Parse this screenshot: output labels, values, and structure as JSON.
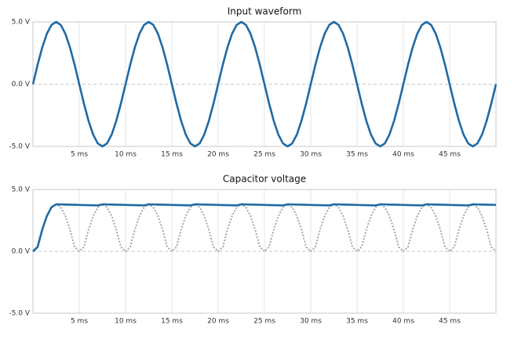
{
  "chart_data": [
    {
      "type": "line",
      "title": "Input waveform",
      "x": [
        0,
        0.5,
        1,
        1.5,
        2,
        2.5,
        3,
        3.5,
        4,
        4.5,
        5,
        5.5,
        6,
        6.5,
        7,
        7.5,
        8,
        8.5,
        9,
        9.5,
        10,
        10.5,
        11,
        11.5,
        12,
        12.5,
        13,
        13.5,
        14,
        14.5,
        15,
        15.5,
        16,
        16.5,
        17,
        17.5,
        18,
        18.5,
        19,
        19.5,
        20,
        20.5,
        21,
        21.5,
        22,
        22.5,
        23,
        23.5,
        24,
        24.5,
        25,
        25.5,
        26,
        26.5,
        27,
        27.5,
        28,
        28.5,
        29,
        29.5,
        30,
        30.5,
        31,
        31.5,
        32,
        32.5,
        33,
        33.5,
        34,
        34.5,
        35,
        35.5,
        36,
        36.5,
        37,
        37.5,
        38,
        38.5,
        39,
        39.5,
        40,
        40.5,
        41,
        41.5,
        42,
        42.5,
        43,
        43.5,
        44,
        44.5,
        45,
        45.5,
        46,
        46.5,
        47,
        47.5,
        48,
        48.5,
        49,
        49.5,
        50
      ],
      "series": [
        {
          "color": "#1f6aa5",
          "dash": "solid",
          "values": [
            0,
            1.55,
            2.94,
            4.05,
            4.76,
            5,
            4.76,
            4.05,
            2.94,
            1.55,
            0,
            -1.55,
            -2.94,
            -4.05,
            -4.76,
            -5,
            -4.76,
            -4.05,
            -2.94,
            -1.55,
            0,
            1.55,
            2.94,
            4.05,
            4.76,
            5,
            4.76,
            4.05,
            2.94,
            1.55,
            0,
            -1.55,
            -2.94,
            -4.05,
            -4.76,
            -5,
            -4.76,
            -4.05,
            -2.94,
            -1.55,
            0,
            1.55,
            2.94,
            4.05,
            4.76,
            5,
            4.76,
            4.05,
            2.94,
            1.55,
            0,
            -1.55,
            -2.94,
            -4.05,
            -4.76,
            -5,
            -4.76,
            -4.05,
            -2.94,
            -1.55,
            0,
            1.55,
            2.94,
            4.05,
            4.76,
            5,
            4.76,
            4.05,
            2.94,
            1.55,
            0,
            -1.55,
            -2.94,
            -4.05,
            -4.76,
            -5,
            -4.76,
            -4.05,
            -2.94,
            -1.55,
            0,
            1.55,
            2.94,
            4.05,
            4.76,
            5,
            4.76,
            4.05,
            2.94,
            1.55,
            0,
            -1.55,
            -2.94,
            -4.05,
            -4.76,
            -5,
            -4.76,
            -4.05,
            -2.94,
            -1.55,
            0
          ]
        }
      ],
      "xlim": [
        0,
        50
      ],
      "xticks": [
        {
          "value": 5,
          "label": "5 ms"
        },
        {
          "value": 10,
          "label": "10 ms"
        },
        {
          "value": 15,
          "label": "15 ms"
        },
        {
          "value": 20,
          "label": "20 ms"
        },
        {
          "value": 25,
          "label": "25 ms"
        },
        {
          "value": 30,
          "label": "30 ms"
        },
        {
          "value": 35,
          "label": "35 ms"
        },
        {
          "value": 40,
          "label": "40 ms"
        },
        {
          "value": 45,
          "label": "45 ms"
        }
      ],
      "ylim": [
        -5,
        5
      ],
      "yticks": [
        {
          "value": -5,
          "label": "-5.0 V"
        },
        {
          "value": 0,
          "label": "0.0 V"
        },
        {
          "value": 5,
          "label": "5.0 V"
        }
      ],
      "grid": true
    },
    {
      "type": "line",
      "title": "Capacitor voltage",
      "x": [
        0,
        0.5,
        1,
        1.5,
        2,
        2.5,
        3,
        3.5,
        4,
        4.5,
        5,
        5.5,
        6,
        6.5,
        7,
        7.5,
        8,
        8.5,
        9,
        9.5,
        10,
        10.5,
        11,
        11.5,
        12,
        12.5,
        13,
        13.5,
        14,
        14.5,
        15,
        15.5,
        16,
        16.5,
        17,
        17.5,
        18,
        18.5,
        19,
        19.5,
        20,
        20.5,
        21,
        21.5,
        22,
        22.5,
        23,
        23.5,
        24,
        24.5,
        25,
        25.5,
        26,
        26.5,
        27,
        27.5,
        28,
        28.5,
        29,
        29.5,
        30,
        30.5,
        31,
        31.5,
        32,
        32.5,
        33,
        33.5,
        34,
        34.5,
        35,
        35.5,
        36,
        36.5,
        37,
        37.5,
        38,
        38.5,
        39,
        39.5,
        40,
        40.5,
        41,
        41.5,
        42,
        42.5,
        43,
        43.5,
        44,
        44.5,
        45,
        45.5,
        46,
        46.5,
        47,
        47.5,
        48,
        48.5,
        49,
        49.5,
        50
      ],
      "series": [
        {
          "color": "#a6a6a6",
          "dash": "dotted",
          "values": [
            0,
            0.35,
            1.74,
            2.85,
            3.56,
            3.8,
            3.56,
            2.85,
            1.74,
            0.35,
            0,
            0.35,
            1.74,
            2.85,
            3.56,
            3.8,
            3.56,
            2.85,
            1.74,
            0.35,
            0,
            0.35,
            1.74,
            2.85,
            3.56,
            3.8,
            3.56,
            2.85,
            1.74,
            0.35,
            0,
            0.35,
            1.74,
            2.85,
            3.56,
            3.8,
            3.56,
            2.85,
            1.74,
            0.35,
            0,
            0.35,
            1.74,
            2.85,
            3.56,
            3.8,
            3.56,
            2.85,
            1.74,
            0.35,
            0,
            0.35,
            1.74,
            2.85,
            3.56,
            3.8,
            3.56,
            2.85,
            1.74,
            0.35,
            0,
            0.35,
            1.74,
            2.85,
            3.56,
            3.8,
            3.56,
            2.85,
            1.74,
            0.35,
            0,
            0.35,
            1.74,
            2.85,
            3.56,
            3.8,
            3.56,
            2.85,
            1.74,
            0.35,
            0,
            0.35,
            1.74,
            2.85,
            3.56,
            3.8,
            3.56,
            2.85,
            1.74,
            0.35,
            0,
            0.35,
            1.74,
            2.85,
            3.56,
            3.8,
            3.56,
            2.85,
            1.74,
            0.35,
            0
          ]
        },
        {
          "color": "#1f6aa5",
          "dash": "solid",
          "values": [
            0,
            0.35,
            1.74,
            2.85,
            3.56,
            3.8,
            3.79,
            3.78,
            3.77,
            3.76,
            3.75,
            3.74,
            3.73,
            3.72,
            3.71,
            3.8,
            3.79,
            3.78,
            3.77,
            3.76,
            3.75,
            3.74,
            3.73,
            3.72,
            3.71,
            3.8,
            3.79,
            3.78,
            3.77,
            3.76,
            3.75,
            3.74,
            3.73,
            3.72,
            3.71,
            3.8,
            3.79,
            3.78,
            3.77,
            3.76,
            3.75,
            3.74,
            3.73,
            3.72,
            3.71,
            3.8,
            3.79,
            3.78,
            3.77,
            3.76,
            3.75,
            3.74,
            3.73,
            3.72,
            3.71,
            3.8,
            3.79,
            3.78,
            3.77,
            3.76,
            3.75,
            3.74,
            3.73,
            3.72,
            3.71,
            3.8,
            3.79,
            3.78,
            3.77,
            3.76,
            3.75,
            3.74,
            3.73,
            3.72,
            3.71,
            3.8,
            3.79,
            3.78,
            3.77,
            3.76,
            3.75,
            3.74,
            3.73,
            3.72,
            3.71,
            3.8,
            3.79,
            3.78,
            3.77,
            3.76,
            3.75,
            3.74,
            3.73,
            3.72,
            3.71,
            3.8,
            3.79,
            3.78,
            3.77,
            3.76,
            3.75
          ]
        }
      ],
      "xlim": [
        0,
        50
      ],
      "xticks": [
        {
          "value": 5,
          "label": "5 ms"
        },
        {
          "value": 10,
          "label": "10 ms"
        },
        {
          "value": 15,
          "label": "15 ms"
        },
        {
          "value": 20,
          "label": "20 ms"
        },
        {
          "value": 25,
          "label": "25 ms"
        },
        {
          "value": 30,
          "label": "30 ms"
        },
        {
          "value": 35,
          "label": "35 ms"
        },
        {
          "value": 40,
          "label": "40 ms"
        },
        {
          "value": 45,
          "label": "45 ms"
        }
      ],
      "ylim": [
        -5,
        5
      ],
      "yticks": [
        {
          "value": -5,
          "label": "-5.0 V"
        },
        {
          "value": 0,
          "label": "0.0 V"
        },
        {
          "value": 5,
          "label": "5.0 V"
        }
      ],
      "grid": true
    }
  ]
}
